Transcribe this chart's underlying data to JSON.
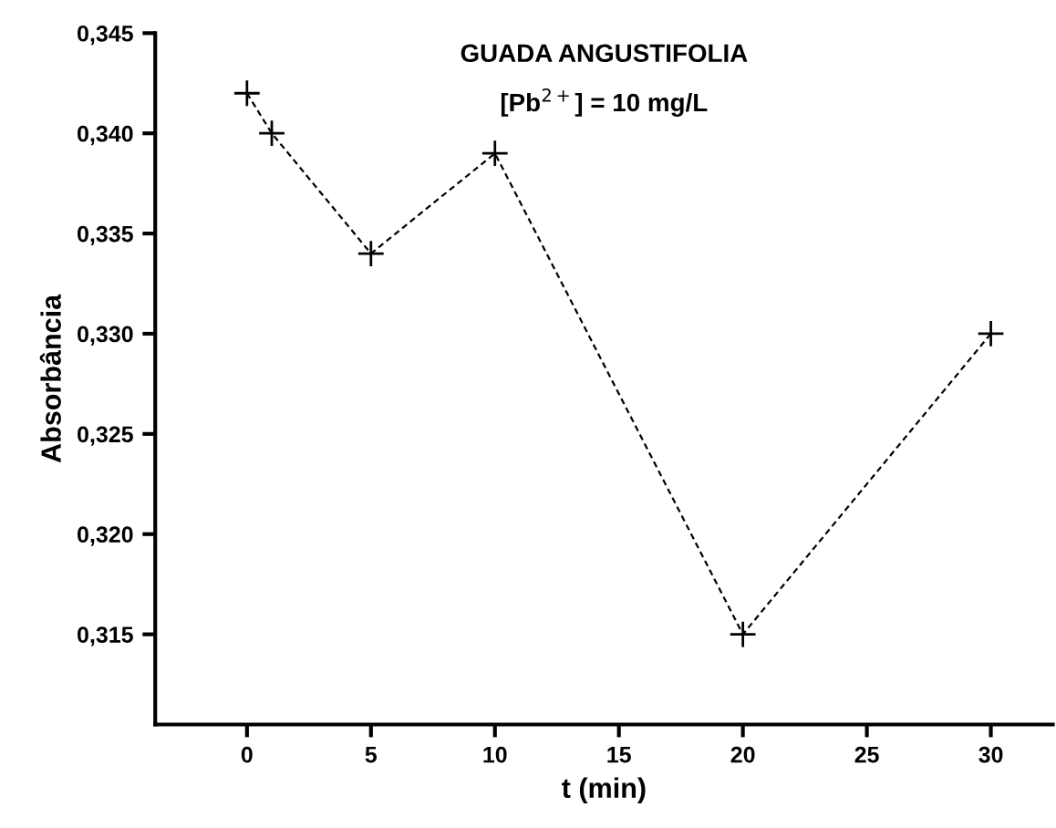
{
  "chart_data": {
    "type": "line",
    "title": "GUADA ANGUSTIFOLIA",
    "subtitle": "[Pb$^{2+}$] = 10 mg/L",
    "xlabel": "t (min)",
    "ylabel": "Absorbância",
    "x": [
      0,
      1,
      5,
      10,
      20,
      30
    ],
    "series": [
      {
        "color": "#000000",
        "values": [
          0.342,
          0.34,
          0.334,
          0.339,
          0.315,
          0.33
        ]
      }
    ],
    "marker": "cross",
    "line_style": "dashed",
    "grid": false,
    "legend": false,
    "xlim": [
      -3.7,
      32.5
    ],
    "xticks": [
      0,
      5,
      10,
      15,
      20,
      25,
      30
    ],
    "ylim": [
      0.3105,
      0.345
    ],
    "yticks": [
      {
        "value": 0.315,
        "label": "0,315"
      },
      {
        "value": 0.32,
        "label": "0,320"
      },
      {
        "value": 0.325,
        "label": "0,325"
      },
      {
        "value": 0.33,
        "label": "0,330"
      },
      {
        "value": 0.335,
        "label": "0,335"
      },
      {
        "value": 0.34,
        "label": "0,340"
      },
      {
        "value": 0.345,
        "label": "0,345"
      }
    ]
  }
}
